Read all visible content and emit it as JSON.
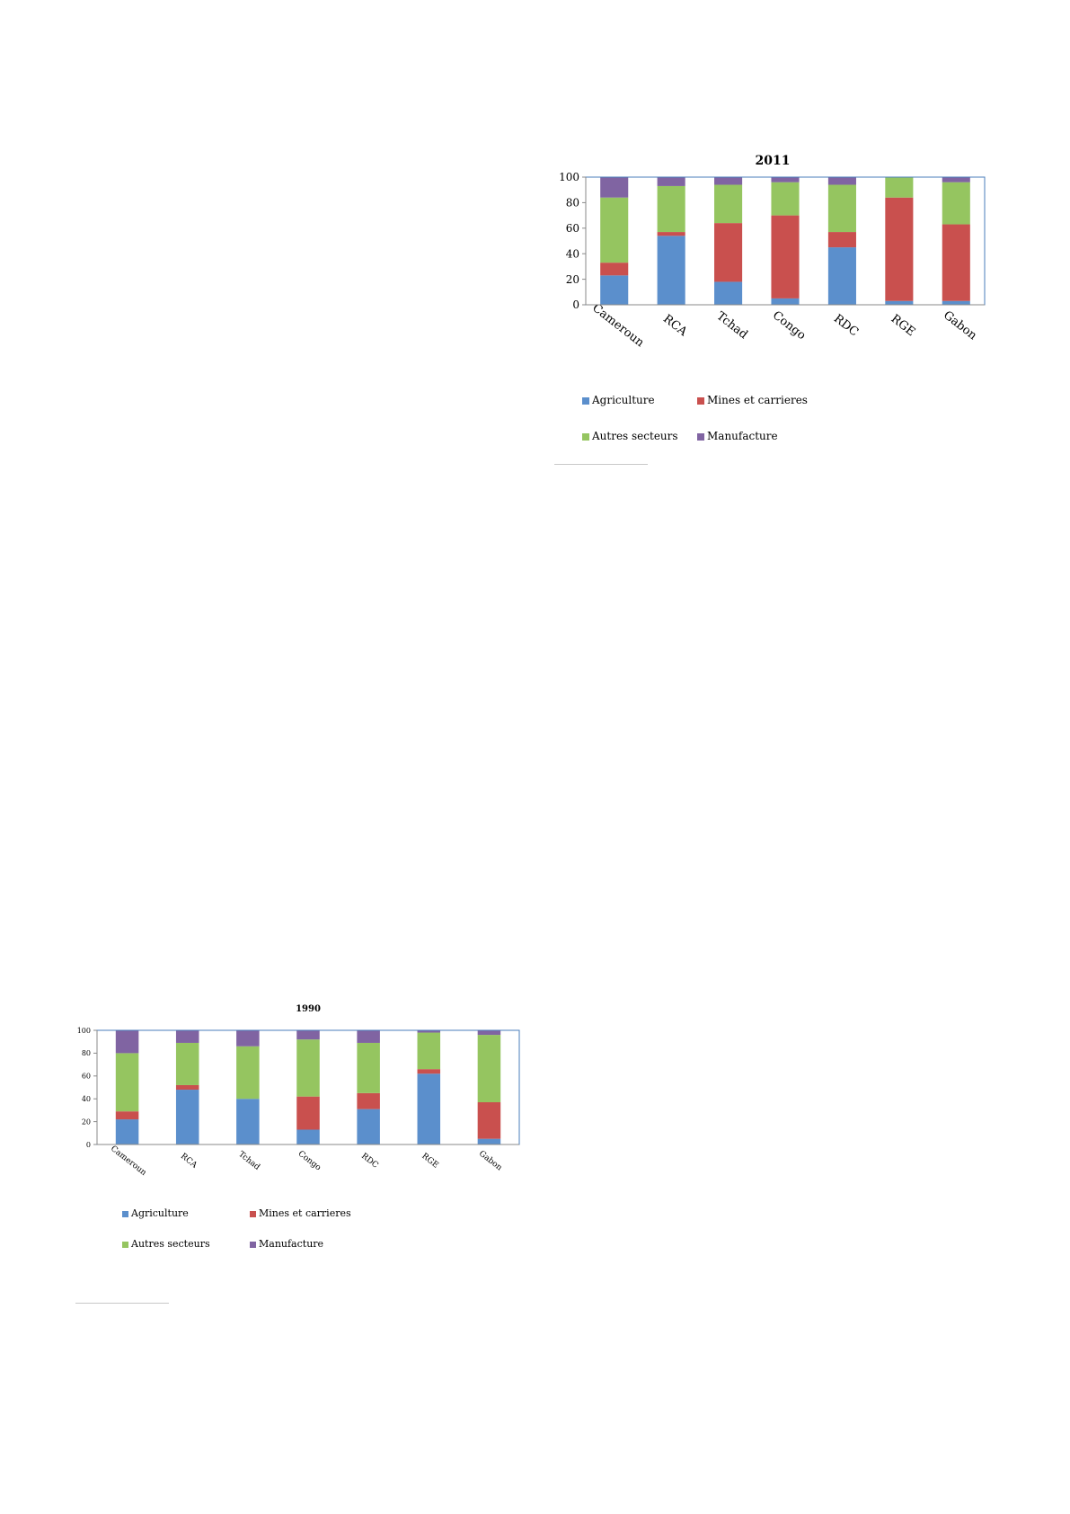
{
  "colors": {
    "agriculture": "#5b8fcc",
    "mines": "#c9504e",
    "autres": "#95c560",
    "manufacture": "#8064a2",
    "plot_border": "#4a7ebb",
    "axis": "#888888"
  },
  "chart_data": [
    {
      "type": "bar",
      "stacked": true,
      "title": "2011",
      "categories": [
        "Cameroun",
        "RCA",
        "Tchad",
        "Congo",
        "RDC",
        "RGE",
        "Gabon"
      ],
      "ylim": [
        0,
        100
      ],
      "yticks": [
        "0",
        "20",
        "40",
        "60",
        "80",
        "100"
      ],
      "legend_position": "bottom",
      "series": [
        {
          "name": "Agriculture",
          "color_key": "agriculture",
          "values": [
            23,
            54,
            18,
            5,
            45,
            3,
            3
          ]
        },
        {
          "name": "Mines et carrieres",
          "color_key": "mines",
          "values": [
            10,
            3,
            46,
            65,
            12,
            81,
            60
          ]
        },
        {
          "name": "Autres secteurs",
          "color_key": "autres",
          "values": [
            51,
            36,
            30,
            26,
            37,
            16,
            33
          ]
        },
        {
          "name": "Manufacture",
          "color_key": "manufacture",
          "values": [
            16,
            7,
            6,
            4,
            6,
            0,
            4
          ]
        }
      ]
    },
    {
      "type": "bar",
      "stacked": true,
      "title": "1990",
      "categories": [
        "Cameroun",
        "RCA",
        "Tchad",
        "Congo",
        "RDC",
        "RGE",
        "Gabon"
      ],
      "ylim": [
        0,
        100
      ],
      "yticks": [
        "0",
        "20",
        "40",
        "60",
        "80",
        "100"
      ],
      "legend_position": "bottom",
      "series": [
        {
          "name": "Agriculture",
          "color_key": "agriculture",
          "values": [
            22,
            48,
            40,
            13,
            31,
            62,
            5
          ]
        },
        {
          "name": "Mines et carrieres",
          "color_key": "mines",
          "values": [
            7,
            4,
            0,
            29,
            14,
            4,
            32
          ]
        },
        {
          "name": "Autres secteurs",
          "color_key": "autres",
          "values": [
            51,
            37,
            46,
            50,
            44,
            32,
            59
          ]
        },
        {
          "name": "Manufacture",
          "color_key": "manufacture",
          "values": [
            20,
            11,
            14,
            8,
            11,
            2,
            4
          ]
        }
      ]
    }
  ]
}
